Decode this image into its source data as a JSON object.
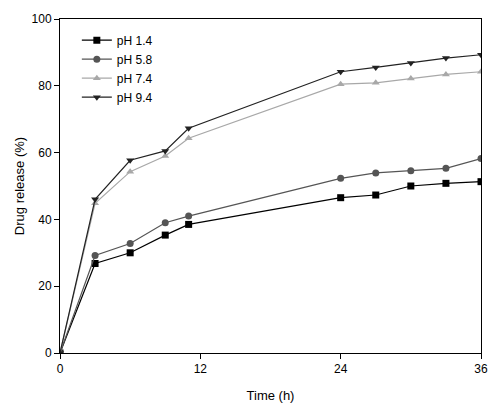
{
  "chart_data": {
    "type": "line",
    "x_label": "Time (h)",
    "y_label": "Drug release (%)",
    "x": [
      0,
      3,
      6,
      9,
      11,
      24,
      27,
      30,
      33,
      36
    ],
    "series": [
      {
        "name": "pH 1.4",
        "color": "#000000",
        "marker": "square",
        "values": [
          0,
          26.8,
          30,
          35.3,
          38.5,
          46.5,
          47.3,
          50,
          50.8,
          51.3
        ]
      },
      {
        "name": "pH 5.8",
        "color": "#555555",
        "marker": "circle",
        "values": [
          0,
          29.2,
          32.8,
          39,
          41,
          52.3,
          53.9,
          54.6,
          55.3,
          58.2
        ]
      },
      {
        "name": "pH 7.4",
        "color": "#a8a8a8",
        "marker": "triangle-up",
        "values": [
          0,
          44.8,
          54.3,
          59,
          64.3,
          80.5,
          80.9,
          82.2,
          83.4,
          84.2
        ]
      },
      {
        "name": "pH 9.4",
        "color": "#222222",
        "marker": "triangle-down",
        "values": [
          0,
          46,
          57.7,
          60.5,
          67.3,
          84.2,
          85.5,
          86.8,
          88.3,
          89.3
        ]
      }
    ],
    "xlim": [
      0,
      36
    ],
    "xticks": [
      0,
      12,
      24,
      36
    ],
    "ylim": [
      0,
      100
    ],
    "yticks": [
      0,
      20,
      40,
      60,
      80,
      100
    ],
    "grid": false,
    "legend": "upper left"
  }
}
